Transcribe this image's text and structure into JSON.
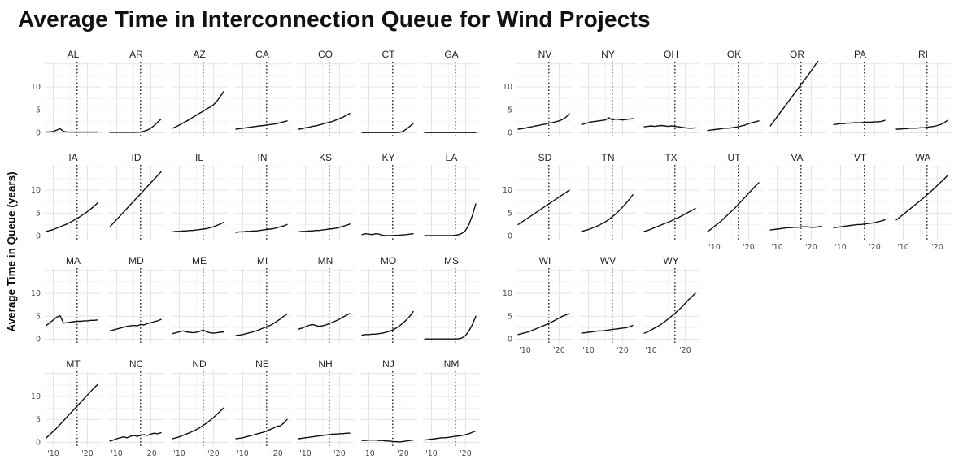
{
  "chart_data": {
    "type": "line",
    "title": "Average Time in Interconnection Queue for Wind Projects",
    "ylabel": "Average Time in Queue (years)",
    "x_years": [
      2008,
      2009,
      2010,
      2011,
      2012,
      2013,
      2014,
      2015,
      2016,
      2017,
      2018,
      2019,
      2020,
      2021,
      2022,
      2023
    ],
    "x_domain": [
      2007.5,
      2024.2
    ],
    "y_domain": [
      -0.8,
      15.5
    ],
    "y_ticks": [
      0,
      5,
      10
    ],
    "y_major": [
      0,
      5,
      10,
      15
    ],
    "y_minor": [
      2.5,
      7.5,
      12.5
    ],
    "x_minor": [
      2015
    ],
    "x_ticks": [
      {
        "year": 2010,
        "label": "'10"
      },
      {
        "year": 2020,
        "label": "'20"
      }
    ],
    "vline_year": 2017,
    "blocks": [
      {
        "name": "left",
        "cols": 7,
        "panels": [
          {
            "state": "AL",
            "y": [
              0.2,
              0.2,
              0.3,
              0.6,
              0.9,
              0.3,
              0.2,
              0.15,
              0.15,
              0.15,
              0.15,
              0.15,
              0.15,
              0.15,
              0.15,
              0.2
            ]
          },
          {
            "state": "AR",
            "y": [
              0.1,
              0.1,
              0.1,
              0.1,
              0.1,
              0.1,
              0.1,
              0.1,
              0.1,
              0.2,
              0.35,
              0.6,
              1.0,
              1.6,
              2.3,
              3.0
            ]
          },
          {
            "state": "AZ",
            "y": [
              1.0,
              1.3,
              1.7,
              2.1,
              2.5,
              2.9,
              3.4,
              3.8,
              4.3,
              4.7,
              5.2,
              5.6,
              6.1,
              6.9,
              7.9,
              9.0
            ]
          },
          {
            "state": "CA",
            "y": [
              0.8,
              0.9,
              1.0,
              1.1,
              1.2,
              1.3,
              1.4,
              1.5,
              1.6,
              1.7,
              1.8,
              1.9,
              2.0,
              2.2,
              2.4,
              2.6
            ]
          },
          {
            "state": "CO",
            "y": [
              0.8,
              0.9,
              1.1,
              1.2,
              1.4,
              1.5,
              1.7,
              1.9,
              2.1,
              2.3,
              2.5,
              2.8,
              3.1,
              3.4,
              3.8,
              4.2
            ]
          },
          {
            "state": "CT",
            "y": [
              0.05,
              0.05,
              0.05,
              0.05,
              0.05,
              0.05,
              0.05,
              0.05,
              0.05,
              0.05,
              0.05,
              0.1,
              0.3,
              0.8,
              1.4,
              2.0
            ]
          },
          {
            "state": "GA",
            "y": [
              0.05,
              0.05,
              0.05,
              0.05,
              0.05,
              0.05,
              0.05,
              0.05,
              0.05,
              0.05,
              0.05,
              0.05,
              0.05,
              0.05,
              0.05,
              0.05
            ]
          },
          {
            "state": "IA",
            "y": [
              1.0,
              1.2,
              1.4,
              1.7,
              2.0,
              2.3,
              2.6,
              3.0,
              3.4,
              3.8,
              4.3,
              4.8,
              5.3,
              5.9,
              6.5,
              7.2
            ]
          },
          {
            "state": "ID",
            "y": [
              2.0,
              2.8,
              3.6,
              4.4,
              5.2,
              6.0,
              6.8,
              7.6,
              8.4,
              9.2,
              10.0,
              10.8,
              11.6,
              12.4,
              13.2,
              14.0
            ]
          },
          {
            "state": "IL",
            "y": [
              0.9,
              1.0,
              1.0,
              1.1,
              1.1,
              1.2,
              1.2,
              1.3,
              1.4,
              1.5,
              1.6,
              1.8,
              2.0,
              2.3,
              2.6,
              3.0
            ]
          },
          {
            "state": "IN",
            "y": [
              0.8,
              0.9,
              0.9,
              1.0,
              1.0,
              1.1,
              1.1,
              1.2,
              1.3,
              1.4,
              1.5,
              1.6,
              1.8,
              2.0,
              2.2,
              2.5
            ]
          },
          {
            "state": "KS",
            "y": [
              0.9,
              1.0,
              1.0,
              1.1,
              1.1,
              1.2,
              1.2,
              1.3,
              1.4,
              1.5,
              1.6,
              1.7,
              1.9,
              2.1,
              2.3,
              2.6
            ]
          },
          {
            "state": "KY",
            "y": [
              0.3,
              0.5,
              0.4,
              0.3,
              0.5,
              0.4,
              0.2,
              0.1,
              0.1,
              0.1,
              0.15,
              0.2,
              0.25,
              0.3,
              0.4,
              0.5
            ]
          },
          {
            "state": "LA",
            "y": [
              0.1,
              0.1,
              0.1,
              0.1,
              0.1,
              0.1,
              0.1,
              0.1,
              0.1,
              0.15,
              0.3,
              0.6,
              1.2,
              2.5,
              4.5,
              7.0
            ]
          },
          {
            "state": "MA",
            "y": [
              3.0,
              3.6,
              4.2,
              4.8,
              5.1,
              3.5,
              3.6,
              3.7,
              3.8,
              3.9,
              3.9,
              4.0,
              4.0,
              4.1,
              4.1,
              4.2
            ]
          },
          {
            "state": "MD",
            "y": [
              1.8,
              2.0,
              2.2,
              2.4,
              2.6,
              2.8,
              2.9,
              3.0,
              2.9,
              3.2,
              3.1,
              3.4,
              3.6,
              3.8,
              4.0,
              4.3
            ]
          },
          {
            "state": "ME",
            "y": [
              1.2,
              1.4,
              1.6,
              1.8,
              1.6,
              1.5,
              1.4,
              1.5,
              1.7,
              2.0,
              1.6,
              1.4,
              1.3,
              1.4,
              1.5,
              1.6
            ]
          },
          {
            "state": "MI",
            "y": [
              0.8,
              0.9,
              1.0,
              1.2,
              1.4,
              1.6,
              1.8,
              2.1,
              2.4,
              2.7,
              3.0,
              3.4,
              3.9,
              4.4,
              5.0,
              5.5
            ]
          },
          {
            "state": "MN",
            "y": [
              2.2,
              2.4,
              2.7,
              3.0,
              3.2,
              3.0,
              2.8,
              2.9,
              3.1,
              3.4,
              3.7,
              4.0,
              4.4,
              4.8,
              5.2,
              5.6
            ]
          },
          {
            "state": "MO",
            "y": [
              0.9,
              1.0,
              1.0,
              1.1,
              1.1,
              1.2,
              1.3,
              1.5,
              1.7,
              2.0,
              2.4,
              2.9,
              3.5,
              4.2,
              5.0,
              6.0
            ]
          },
          {
            "state": "MS",
            "y": [
              0.05,
              0.05,
              0.05,
              0.05,
              0.05,
              0.05,
              0.05,
              0.05,
              0.05,
              0.05,
              0.1,
              0.3,
              0.8,
              1.8,
              3.2,
              5.0
            ]
          },
          {
            "state": "MT",
            "y": [
              1.0,
              1.7,
              2.4,
              3.1,
              3.9,
              4.7,
              5.5,
              6.3,
              7.1,
              7.9,
              8.7,
              9.5,
              10.3,
              11.1,
              11.9,
              12.6
            ]
          },
          {
            "state": "NC",
            "y": [
              0.3,
              0.5,
              0.8,
              1.0,
              1.2,
              1.0,
              1.3,
              1.5,
              1.3,
              1.5,
              1.7,
              1.5,
              1.8,
              2.0,
              1.9,
              2.1
            ]
          },
          {
            "state": "ND",
            "y": [
              0.8,
              1.0,
              1.2,
              1.5,
              1.8,
              2.1,
              2.4,
              2.8,
              3.2,
              3.7,
              4.2,
              4.8,
              5.4,
              6.1,
              6.8,
              7.5
            ]
          },
          {
            "state": "NE",
            "y": [
              0.8,
              0.9,
              1.0,
              1.2,
              1.4,
              1.6,
              1.8,
              2.0,
              2.2,
              2.5,
              2.8,
              3.1,
              3.5,
              3.6,
              4.2,
              5.0
            ]
          },
          {
            "state": "NH",
            "y": [
              0.8,
              0.9,
              1.0,
              1.1,
              1.2,
              1.3,
              1.4,
              1.5,
              1.6,
              1.7,
              1.8,
              1.8,
              1.9,
              1.9,
              2.0,
              2.0
            ]
          },
          {
            "state": "NJ",
            "y": [
              0.4,
              0.4,
              0.5,
              0.5,
              0.5,
              0.4,
              0.4,
              0.3,
              0.3,
              0.2,
              0.15,
              0.1,
              0.2,
              0.3,
              0.4,
              0.5
            ]
          },
          {
            "state": "NM",
            "y": [
              0.5,
              0.6,
              0.7,
              0.8,
              0.9,
              1.0,
              1.0,
              1.1,
              1.2,
              1.3,
              1.4,
              1.5,
              1.7,
              1.9,
              2.2,
              2.5
            ]
          }
        ]
      },
      {
        "name": "right",
        "cols": 7,
        "panels": [
          {
            "state": "NV",
            "y": [
              0.8,
              0.9,
              1.0,
              1.2,
              1.3,
              1.5,
              1.6,
              1.8,
              1.9,
              2.1,
              2.2,
              2.4,
              2.6,
              2.9,
              3.4,
              4.2
            ]
          },
          {
            "state": "NY",
            "y": [
              1.8,
              2.0,
              2.2,
              2.4,
              2.5,
              2.6,
              2.7,
              2.8,
              3.3,
              2.8,
              3.0,
              2.9,
              2.8,
              2.9,
              3.0,
              3.1
            ]
          },
          {
            "state": "OH",
            "y": [
              1.3,
              1.4,
              1.5,
              1.4,
              1.5,
              1.6,
              1.5,
              1.4,
              1.5,
              1.4,
              1.3,
              1.2,
              1.1,
              1.0,
              1.0,
              1.1
            ]
          },
          {
            "state": "OK",
            "y": [
              0.5,
              0.6,
              0.7,
              0.8,
              0.9,
              1.0,
              1.0,
              1.1,
              1.2,
              1.3,
              1.5,
              1.7,
              2.0,
              2.2,
              2.4,
              2.6
            ]
          },
          {
            "state": "OR",
            "y": [
              1.5,
              2.5,
              3.5,
              4.5,
              5.5,
              6.5,
              7.5,
              8.5,
              9.5,
              10.5,
              11.5,
              12.5,
              13.5,
              14.6,
              15.7,
              16.8
            ]
          },
          {
            "state": "PA",
            "y": [
              1.8,
              1.9,
              2.0,
              2.0,
              2.1,
              2.1,
              2.2,
              2.2,
              2.2,
              2.3,
              2.3,
              2.3,
              2.4,
              2.4,
              2.5,
              2.7
            ]
          },
          {
            "state": "RI",
            "y": [
              0.8,
              0.8,
              0.9,
              0.9,
              1.0,
              1.0,
              1.0,
              1.1,
              1.1,
              1.2,
              1.3,
              1.4,
              1.6,
              1.8,
              2.2,
              2.7
            ]
          },
          {
            "state": "SD",
            "y": [
              2.5,
              3.0,
              3.5,
              4.0,
              4.5,
              5.0,
              5.5,
              6.0,
              6.5,
              7.0,
              7.5,
              8.0,
              8.5,
              9.0,
              9.5,
              10.0
            ]
          },
          {
            "state": "TN",
            "y": [
              1.0,
              1.2,
              1.4,
              1.7,
              2.0,
              2.3,
              2.7,
              3.1,
              3.6,
              4.2,
              4.8,
              5.5,
              6.3,
              7.1,
              8.0,
              9.0
            ]
          },
          {
            "state": "TX",
            "y": [
              1.0,
              1.2,
              1.5,
              1.8,
              2.1,
              2.4,
              2.7,
              3.0,
              3.3,
              3.7,
              4.0,
              4.4,
              4.8,
              5.2,
              5.6,
              6.0
            ]
          },
          {
            "state": "UT",
            "y": [
              1.0,
              1.5,
              2.1,
              2.7,
              3.3,
              4.0,
              4.7,
              5.4,
              6.1,
              6.9,
              7.7,
              8.5,
              9.3,
              10.1,
              10.9,
              11.6
            ]
          },
          {
            "state": "VA",
            "y": [
              1.3,
              1.4,
              1.5,
              1.6,
              1.7,
              1.8,
              1.8,
              1.9,
              1.9,
              2.0,
              2.0,
              2.0,
              1.9,
              1.9,
              2.0,
              2.1
            ]
          },
          {
            "state": "VT",
            "y": [
              1.8,
              1.9,
              2.0,
              2.1,
              2.2,
              2.3,
              2.4,
              2.5,
              2.5,
              2.6,
              2.7,
              2.8,
              2.9,
              3.1,
              3.3,
              3.5
            ]
          },
          {
            "state": "WA",
            "y": [
              3.5,
              4.1,
              4.7,
              5.3,
              5.9,
              6.5,
              7.1,
              7.7,
              8.3,
              9.0,
              9.6,
              10.3,
              11.0,
              11.7,
              12.4,
              13.2
            ]
          },
          {
            "state": "WI",
            "y": [
              1.0,
              1.2,
              1.4,
              1.6,
              1.9,
              2.2,
              2.5,
              2.8,
              3.1,
              3.4,
              3.8,
              4.2,
              4.6,
              5.0,
              5.3,
              5.6
            ]
          },
          {
            "state": "WV",
            "y": [
              1.3,
              1.4,
              1.5,
              1.6,
              1.7,
              1.8,
              1.8,
              1.9,
              2.0,
              2.1,
              2.2,
              2.3,
              2.4,
              2.5,
              2.7,
              3.0
            ]
          },
          {
            "state": "WY",
            "y": [
              1.3,
              1.6,
              2.0,
              2.4,
              2.8,
              3.3,
              3.8,
              4.4,
              5.0,
              5.6,
              6.3,
              7.0,
              7.8,
              8.6,
              9.3,
              10.0
            ]
          }
        ]
      }
    ]
  }
}
